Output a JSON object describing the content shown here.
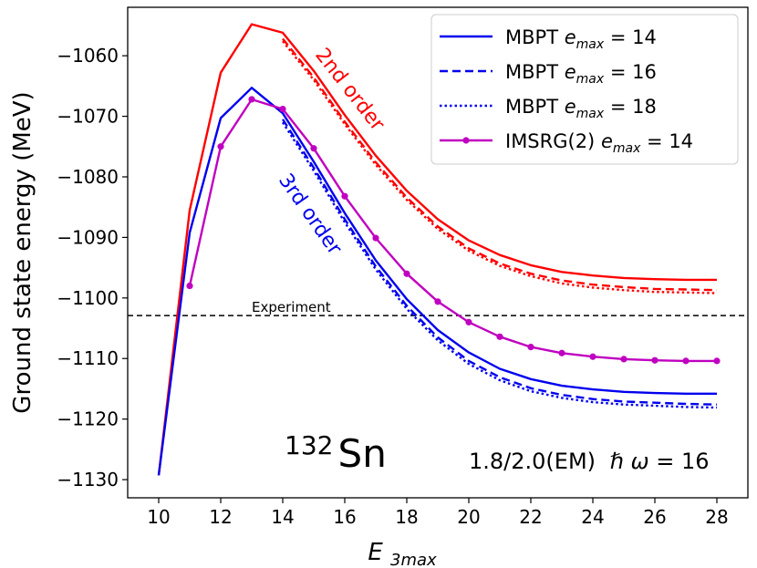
{
  "chart_data": {
    "type": "line",
    "xlabel": "E_3max",
    "ylabel": "Ground state energy (MeV)",
    "xlim": [
      9,
      29
    ],
    "ylim": [
      -1133,
      -1052
    ],
    "xticks": [
      10,
      12,
      14,
      16,
      18,
      20,
      22,
      24,
      26,
      28
    ],
    "yticks": [
      -1130,
      -1120,
      -1110,
      -1100,
      -1090,
      -1080,
      -1070,
      -1060
    ],
    "grid": false,
    "legend_position": "top-right",
    "series": [
      {
        "name": "MBPT e_max = 14",
        "order": "2nd",
        "color": "#ff0000",
        "style": "solid",
        "x": [
          10,
          11,
          12,
          13,
          14,
          15,
          16,
          17,
          18,
          19,
          20,
          21,
          22,
          23,
          24,
          25,
          26,
          27,
          28
        ],
        "y": [
          -1129.3,
          -1085.5,
          -1062.8,
          -1054.8,
          -1056.2,
          -1062.5,
          -1069.8,
          -1076.5,
          -1082.3,
          -1087.0,
          -1090.5,
          -1092.9,
          -1094.6,
          -1095.7,
          -1096.3,
          -1096.7,
          -1096.9,
          -1097.0,
          -1097.0
        ]
      },
      {
        "name": "MBPT e_max = 16",
        "order": "2nd",
        "color": "#ff0000",
        "style": "dashed",
        "x": [
          14,
          15,
          16,
          17,
          18,
          19,
          20,
          21,
          22,
          23,
          24,
          25,
          26,
          27,
          28
        ],
        "y": [
          -1057.2,
          -1063.6,
          -1070.9,
          -1077.6,
          -1083.4,
          -1088.2,
          -1091.8,
          -1094.3,
          -1096.0,
          -1097.1,
          -1097.8,
          -1098.2,
          -1098.5,
          -1098.6,
          -1098.7
        ]
      },
      {
        "name": "MBPT e_max = 18",
        "order": "2nd",
        "color": "#ff0000",
        "style": "dotted",
        "x": [
          14,
          15,
          16,
          17,
          18,
          19,
          20,
          21,
          22,
          23,
          24,
          25,
          26,
          27,
          28
        ],
        "y": [
          -1057.6,
          -1064.0,
          -1071.3,
          -1078.0,
          -1083.8,
          -1088.6,
          -1092.2,
          -1094.7,
          -1096.4,
          -1097.6,
          -1098.3,
          -1098.7,
          -1099.0,
          -1099.1,
          -1099.2
        ]
      },
      {
        "name": "MBPT e_max = 14",
        "order": "3rd",
        "color": "#0000ee",
        "style": "solid",
        "x": [
          10,
          11,
          12,
          13,
          14,
          15,
          16,
          17,
          18,
          19,
          20,
          21,
          22,
          23,
          24,
          25,
          26,
          27,
          28
        ],
        "y": [
          -1129.3,
          -1089.2,
          -1070.3,
          -1065.3,
          -1069.5,
          -1077.5,
          -1086.0,
          -1093.8,
          -1100.2,
          -1105.3,
          -1109.0,
          -1111.7,
          -1113.4,
          -1114.5,
          -1115.1,
          -1115.5,
          -1115.7,
          -1115.8,
          -1115.8
        ]
      },
      {
        "name": "MBPT e_max = 16",
        "order": "3rd",
        "color": "#0000ee",
        "style": "dashed",
        "x": [
          14,
          15,
          16,
          17,
          18,
          19,
          20,
          21,
          22,
          23,
          24,
          25,
          26,
          27,
          28
        ],
        "y": [
          -1070.5,
          -1078.5,
          -1087.0,
          -1094.8,
          -1101.3,
          -1106.5,
          -1110.4,
          -1113.1,
          -1114.9,
          -1116.0,
          -1116.7,
          -1117.1,
          -1117.3,
          -1117.5,
          -1117.6
        ]
      },
      {
        "name": "MBPT e_max = 18",
        "order": "3rd",
        "color": "#0000ee",
        "style": "dotted",
        "x": [
          14,
          15,
          16,
          17,
          18,
          19,
          20,
          21,
          22,
          23,
          24,
          25,
          26,
          27,
          28
        ],
        "y": [
          -1071.0,
          -1079.0,
          -1087.5,
          -1095.3,
          -1101.8,
          -1107.0,
          -1110.9,
          -1113.6,
          -1115.4,
          -1116.5,
          -1117.2,
          -1117.6,
          -1117.8,
          -1118.0,
          -1118.1
        ]
      },
      {
        "name": "IMSRG(2) e_max = 14",
        "color": "#c000c0",
        "style": "solid-markers",
        "x": [
          11,
          12,
          13,
          14,
          15,
          16,
          17,
          18,
          19,
          20,
          21,
          22,
          23,
          24,
          25,
          26,
          27,
          28
        ],
        "y": [
          -1098.0,
          -1075.0,
          -1067.2,
          -1068.8,
          -1075.3,
          -1083.2,
          -1090.1,
          -1096.0,
          -1100.6,
          -1104.0,
          -1106.4,
          -1108.1,
          -1109.1,
          -1109.7,
          -1110.1,
          -1110.3,
          -1110.4,
          -1110.4
        ]
      }
    ],
    "reference_line": {
      "label": "Experiment",
      "y": -1102.9,
      "color": "#000000",
      "style": "dashed"
    },
    "legend": [
      {
        "mbpt": "MBPT",
        "e": "e",
        "sub": "max",
        "rest": " = 14",
        "color": "#0000ee",
        "style": "solid"
      },
      {
        "mbpt": "MBPT",
        "e": "e",
        "sub": "max",
        "rest": " = 16",
        "color": "#0000ee",
        "style": "dashed"
      },
      {
        "mbpt": "MBPT",
        "e": "e",
        "sub": "max",
        "rest": " = 18",
        "color": "#0000ee",
        "style": "dotted"
      },
      {
        "mbpt": "IMSRG(2)",
        "e": "e",
        "sub": "max",
        "rest": " = 14",
        "color": "#c000c0",
        "style": "solid-markers"
      }
    ],
    "annotations": {
      "second_order": {
        "text": "2nd order",
        "color": "#ff0000"
      },
      "third_order": {
        "text": "3rd order",
        "color": "#0000ee"
      },
      "nucleus": {
        "mass": "132",
        "symbol": "Sn"
      },
      "interaction": {
        "text": "1.8/2.0(EM)",
        "hbar": "ℏ",
        "omega": "ω",
        "rest": " = 16"
      }
    },
    "xlabel_parts": {
      "main": "E",
      "sub": "3max"
    }
  }
}
